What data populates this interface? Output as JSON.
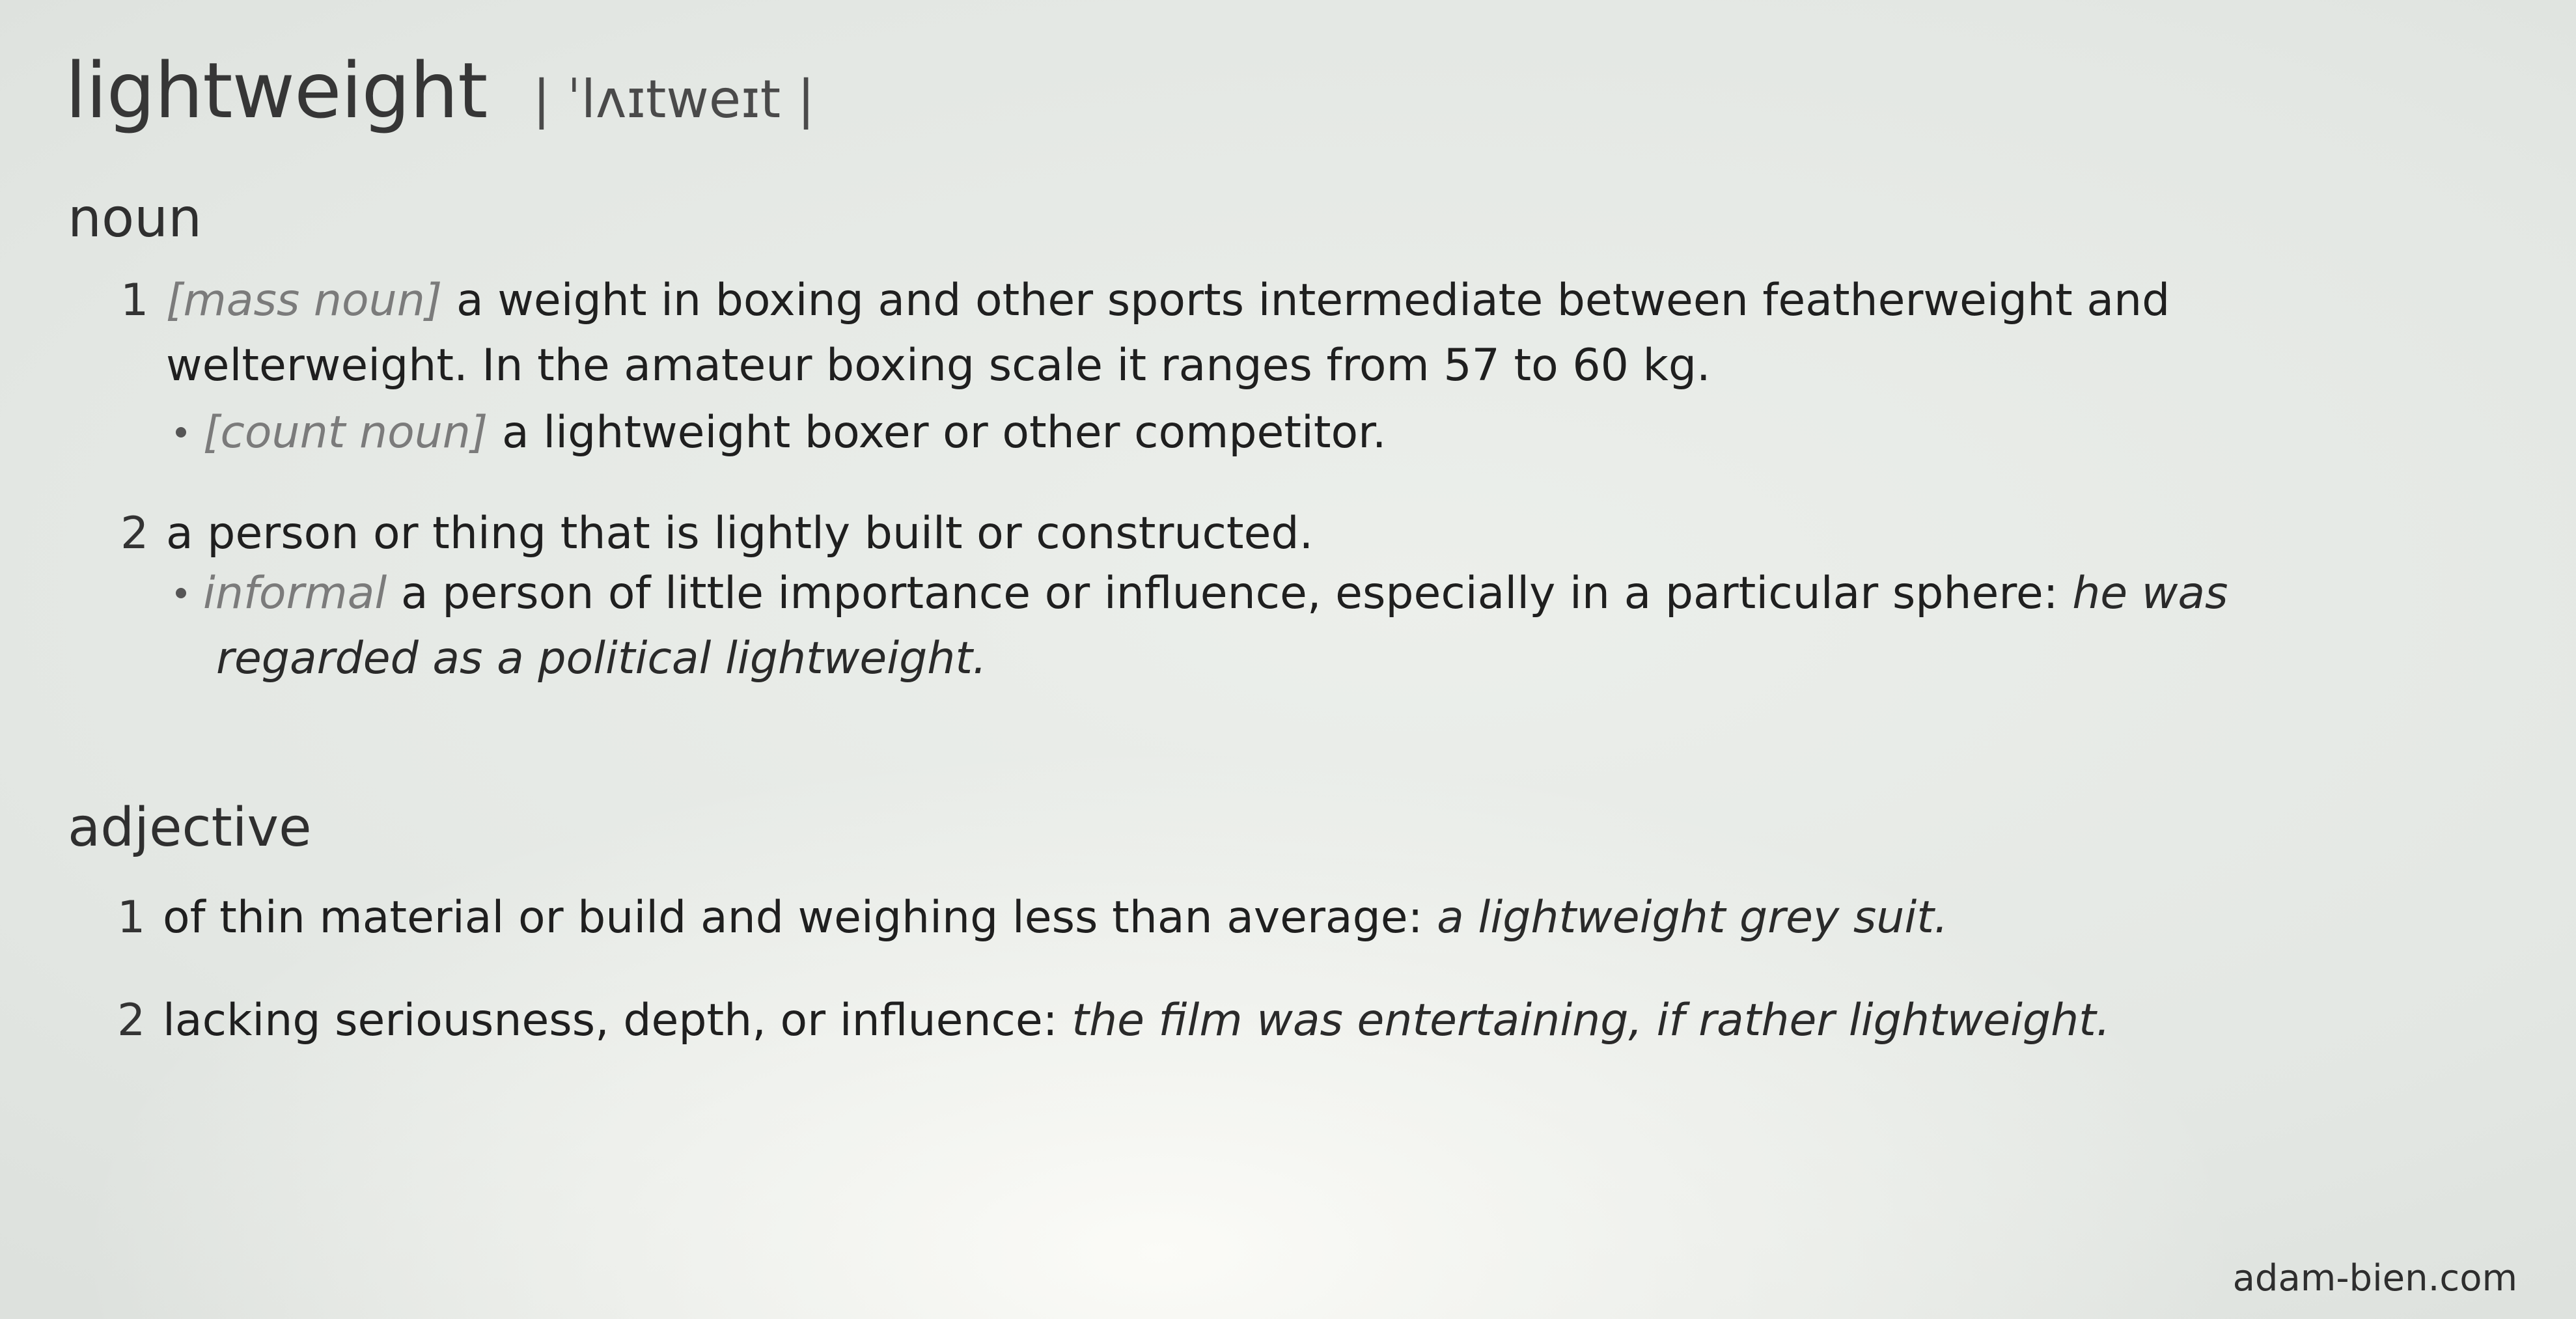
{
  "entry": {
    "headword": "lightweight",
    "pronunciation": "| ˈlʌɪtweɪt |"
  },
  "noun": {
    "label": "noun",
    "senses": [
      {
        "number": "1",
        "register": "[mass noun]",
        "text_line1": "a weight in boxing and other sports intermediate between featherweight and",
        "text_line2": "welterweight. In the amateur boxing scale it ranges from 57 to 60 kg.",
        "subsense": {
          "register": "[count noun]",
          "text": "a lightweight boxer or other competitor."
        }
      },
      {
        "number": "2",
        "text": "a person or thing that is lightly built or constructed.",
        "subsense": {
          "register": "informal",
          "text": "a person of little importance or influence, especially in a particular sphere:",
          "example_line1": "he was",
          "example_line2": "regarded as a political lightweight."
        }
      }
    ]
  },
  "adjective": {
    "label": "adjective",
    "senses": [
      {
        "number": "1",
        "text": "of thin material or build and weighing less than average:",
        "example": "a lightweight grey suit."
      },
      {
        "number": "2",
        "text": "lacking seriousness, depth, or influence:",
        "example": "the film was entertaining, if rather lightweight."
      }
    ]
  },
  "footer": {
    "site": "adam-bien.com"
  }
}
